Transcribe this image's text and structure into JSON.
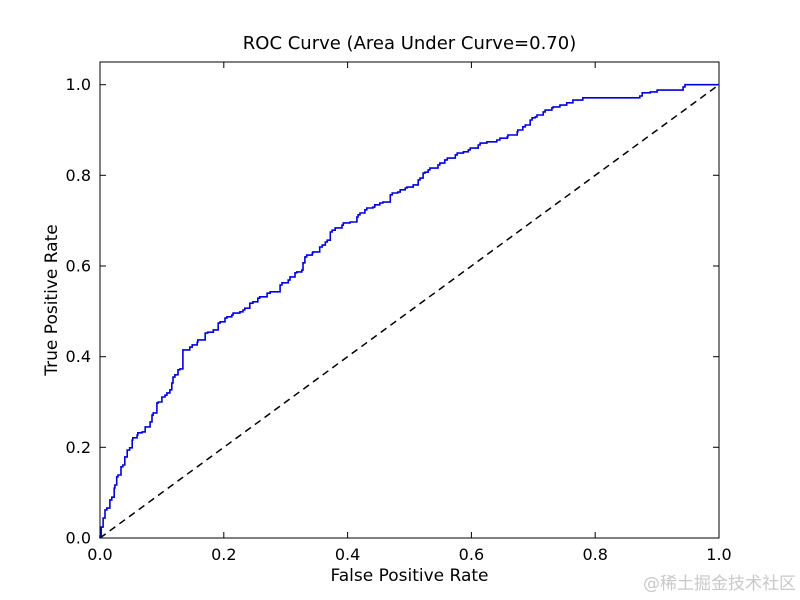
{
  "watermark": {
    "text": "@稀土掘金技术社区",
    "color": "#c9c9c9"
  },
  "chart_data": {
    "type": "line",
    "subtype": "roc_step_plot",
    "title": "ROC Curve (Area Under Curve=0.70)",
    "auc": 0.7,
    "xlabel": "False Positive Rate",
    "ylabel": "True Positive Rate",
    "xlim": [
      0.0,
      1.0
    ],
    "ylim": [
      0.0,
      1.05
    ],
    "grid": false,
    "legend_position": "none",
    "x_ticks": [
      0.0,
      0.2,
      0.4,
      0.6,
      0.8,
      1.0
    ],
    "x_tick_labels": [
      "0.0",
      "0.2",
      "0.4",
      "0.6",
      "0.8",
      "1.0"
    ],
    "y_ticks": [
      0.0,
      0.2,
      0.4,
      0.6,
      0.8,
      1.0
    ],
    "y_tick_labels": [
      "0.0",
      "0.2",
      "0.4",
      "0.6",
      "0.8",
      "1.0"
    ],
    "axis_color": "#000000",
    "series": [
      {
        "name": "ROC curve",
        "style": "step",
        "color": "#0000dd",
        "width": 1.6,
        "points": [
          [
            0,
            0
          ],
          [
            0.002,
            0.004
          ],
          [
            0.005,
            0.024
          ],
          [
            0.008,
            0.044
          ],
          [
            0.011,
            0.062
          ],
          [
            0.016,
            0.066
          ],
          [
            0.019,
            0.084
          ],
          [
            0.023,
            0.09
          ],
          [
            0.024,
            0.11
          ],
          [
            0.027,
            0.117
          ],
          [
            0.029,
            0.135
          ],
          [
            0.034,
            0.139
          ],
          [
            0.037,
            0.157
          ],
          [
            0.04,
            0.161
          ],
          [
            0.044,
            0.179
          ],
          [
            0.048,
            0.194
          ],
          [
            0.052,
            0.199
          ],
          [
            0.053,
            0.216
          ],
          [
            0.06,
            0.221
          ],
          [
            0.061,
            0.227
          ],
          [
            0.068,
            0.232
          ],
          [
            0.073,
            0.234
          ],
          [
            0.081,
            0.245
          ],
          [
            0.084,
            0.256
          ],
          [
            0.086,
            0.271
          ],
          [
            0.092,
            0.276
          ],
          [
            0.094,
            0.298
          ],
          [
            0.1,
            0.3
          ],
          [
            0.105,
            0.311
          ],
          [
            0.108,
            0.315
          ],
          [
            0.113,
            0.32
          ],
          [
            0.116,
            0.327
          ],
          [
            0.118,
            0.342
          ],
          [
            0.121,
            0.355
          ],
          [
            0.126,
            0.36
          ],
          [
            0.129,
            0.371
          ],
          [
            0.134,
            0.373
          ],
          [
            0.134,
            0.41
          ],
          [
            0.145,
            0.415
          ],
          [
            0.149,
            0.421
          ],
          [
            0.157,
            0.426
          ],
          [
            0.158,
            0.432
          ],
          [
            0.17,
            0.437
          ],
          [
            0.174,
            0.452
          ],
          [
            0.183,
            0.454
          ],
          [
            0.191,
            0.459
          ],
          [
            0.194,
            0.474
          ],
          [
            0.202,
            0.477
          ],
          [
            0.205,
            0.485
          ],
          [
            0.213,
            0.488
          ],
          [
            0.215,
            0.492
          ],
          [
            0.226,
            0.496
          ],
          [
            0.231,
            0.499
          ],
          [
            0.234,
            0.503
          ],
          [
            0.242,
            0.507
          ],
          [
            0.247,
            0.518
          ],
          [
            0.255,
            0.521
          ],
          [
            0.258,
            0.529
          ],
          [
            0.27,
            0.532
          ],
          [
            0.275,
            0.54
          ],
          [
            0.291,
            0.543
          ],
          [
            0.294,
            0.558
          ],
          [
            0.304,
            0.563
          ],
          [
            0.307,
            0.569
          ],
          [
            0.315,
            0.576
          ],
          [
            0.318,
            0.585
          ],
          [
            0.326,
            0.587
          ],
          [
            0.328,
            0.591
          ],
          [
            0.331,
            0.607
          ],
          [
            0.334,
            0.62
          ],
          [
            0.343,
            0.624
          ],
          [
            0.344,
            0.629
          ],
          [
            0.355,
            0.631
          ],
          [
            0.359,
            0.642
          ],
          [
            0.364,
            0.646
          ],
          [
            0.367,
            0.653
          ],
          [
            0.372,
            0.657
          ],
          [
            0.375,
            0.675
          ],
          [
            0.38,
            0.679
          ],
          [
            0.391,
            0.684
          ],
          [
            0.393,
            0.69
          ],
          [
            0.404,
            0.695
          ],
          [
            0.415,
            0.697
          ],
          [
            0.417,
            0.708
          ],
          [
            0.42,
            0.713
          ],
          [
            0.428,
            0.717
          ],
          [
            0.431,
            0.724
          ],
          [
            0.441,
            0.728
          ],
          [
            0.444,
            0.73
          ],
          [
            0.452,
            0.735
          ],
          [
            0.457,
            0.739
          ],
          [
            0.469,
            0.741
          ],
          [
            0.472,
            0.757
          ],
          [
            0.481,
            0.761
          ],
          [
            0.485,
            0.763
          ],
          [
            0.493,
            0.768
          ],
          [
            0.496,
            0.772
          ],
          [
            0.506,
            0.774
          ],
          [
            0.514,
            0.779
          ],
          [
            0.517,
            0.79
          ],
          [
            0.522,
            0.794
          ],
          [
            0.525,
            0.805
          ],
          [
            0.53,
            0.807
          ],
          [
            0.533,
            0.812
          ],
          [
            0.546,
            0.816
          ],
          [
            0.549,
            0.823
          ],
          [
            0.557,
            0.827
          ],
          [
            0.561,
            0.834
          ],
          [
            0.574,
            0.838
          ],
          [
            0.577,
            0.845
          ],
          [
            0.587,
            0.849
          ],
          [
            0.595,
            0.852
          ],
          [
            0.598,
            0.856
          ],
          [
            0.611,
            0.86
          ],
          [
            0.614,
            0.867
          ],
          [
            0.625,
            0.871
          ],
          [
            0.641,
            0.874
          ],
          [
            0.646,
            0.878
          ],
          [
            0.658,
            0.882
          ],
          [
            0.659,
            0.885
          ],
          [
            0.674,
            0.889
          ],
          [
            0.675,
            0.896
          ],
          [
            0.683,
            0.9
          ],
          [
            0.687,
            0.907
          ],
          [
            0.695,
            0.911
          ],
          [
            0.698,
            0.922
          ],
          [
            0.703,
            0.927
          ],
          [
            0.706,
            0.929
          ],
          [
            0.716,
            0.933
          ],
          [
            0.719,
            0.94
          ],
          [
            0.73,
            0.944
          ],
          [
            0.732,
            0.949
          ],
          [
            0.743,
            0.951
          ],
          [
            0.754,
            0.955
          ],
          [
            0.764,
            0.96
          ],
          [
            0.78,
            0.966
          ],
          [
            0.792,
            0.971
          ],
          [
            0.872,
            0.971
          ],
          [
            0.876,
            0.975
          ],
          [
            0.889,
            0.982
          ],
          [
            0.9,
            0.984
          ],
          [
            0.942,
            0.988
          ],
          [
            0.945,
            0.995
          ],
          [
            0.953,
            1.0
          ],
          [
            1.0,
            1.0
          ]
        ]
      },
      {
        "name": "Chance diagonal",
        "style": "dashed",
        "color": "#000000",
        "width": 1.5,
        "dash": "7,5",
        "points": [
          [
            0,
            0
          ],
          [
            1,
            1
          ]
        ]
      }
    ]
  }
}
